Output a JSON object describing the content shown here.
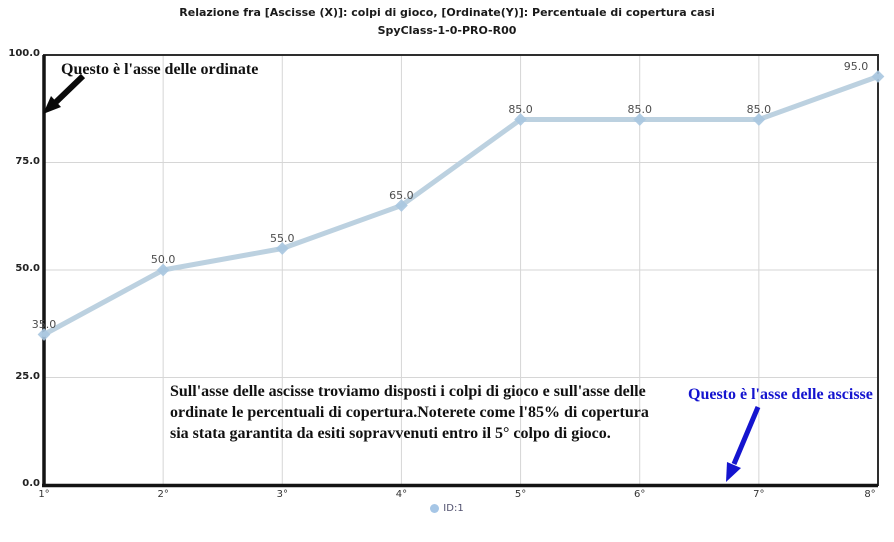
{
  "title": {
    "line1": "Relazione fra [Ascisse (X)]: colpi di gioco, [Ordinate(Y)]: Percentuale di copertura casi",
    "line2": "SpyClass-1-0-PRO-R00"
  },
  "chart_data": {
    "type": "line",
    "categories": [
      "1°",
      "2°",
      "3°",
      "4°",
      "5°",
      "6°",
      "7°",
      "8°"
    ],
    "series": [
      {
        "name": "ID:1",
        "values": [
          35,
          50,
          55,
          65,
          85,
          85,
          85,
          95
        ],
        "point_labels": [
          "35.0",
          "50.0",
          "55.0",
          "65.0",
          "85.0",
          "85.0",
          "85.0",
          "95.0"
        ]
      }
    ],
    "title": "Relazione fra [Ascisse (X)]: colpi di gioco, [Ordinate(Y)]: Percentuale di copertura casi",
    "subtitle": "SpyClass-1-0-PRO-R00",
    "xlabel": "",
    "ylabel": "",
    "ylim": [
      0,
      100
    ],
    "yticks": [
      0,
      25,
      50,
      75,
      100
    ],
    "ytick_labels": [
      "0.0",
      "25.0",
      "50.0",
      "75.0",
      "100.0"
    ],
    "grid": true,
    "legend_position": "bottom",
    "colors": {
      "series": "#bcd1e0",
      "marker": "#a9c6e0",
      "gridline": "#d6d6d6",
      "axis": "#141414",
      "border": "#2e2e2e",
      "annotation_blue": "#1414cf",
      "annotation_black": "#111111"
    }
  },
  "annotations": {
    "ordinate_note": "Questo è l'asse delle ordinate",
    "ascisse_note": "Questo è l'asse delle ascisse",
    "note_lines": [
      "Sull'asse delle ascisse troviamo disposti i colpi di gioco e sull'asse delle",
      "ordinate le percentuali di copertura.Noterete come l'85% di copertura",
      "sia stata garantita da esiti sopravvenuti entro il 5° colpo di gioco."
    ]
  },
  "legend": {
    "label": "ID:1",
    "marker_color": "#a6c6e6"
  }
}
